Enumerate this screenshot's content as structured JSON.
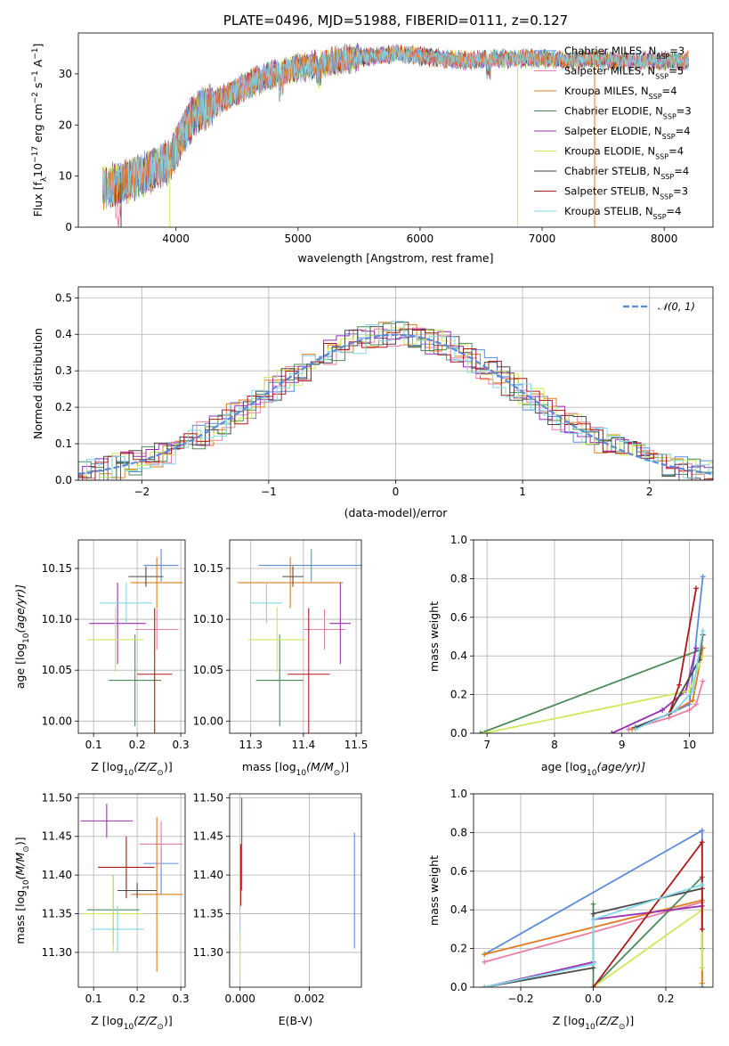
{
  "palette": {
    "chabrier_miles": "#5b8bd9",
    "salpeter_miles": "#e87fa5",
    "kroupa_miles": "#e07b1f",
    "chabrier_elodie": "#4c8a5a",
    "salpeter_elodie": "#9a2fb0",
    "kroupa_elodie": "#cde85a",
    "chabrier_stelib": "#4a4a4a",
    "salpeter_stelib": "#b01818",
    "kroupa_stelib": "#82d6e6",
    "normal": "#5b8bd9"
  },
  "chart_data": [
    {
      "id": "spectrum",
      "type": "line",
      "title": "PLATE=0496, MJD=51988, FIBERID=0111, z=0.127",
      "xlabel": "wavelength [Angstrom, rest frame]",
      "ylabel": "Flux [f",
      "ylabel_sub": "λ",
      "ylabel_rest": "10",
      "ylabel_exp": "−17",
      "ylabel_units": " erg cm",
      "ylabel_units_exp1": "−2",
      "ylabel_units_mid": " s",
      "ylabel_units_exp2": "−1",
      "ylabel_units_end": " A",
      "ylabel_units_exp3": "−1",
      "ylabel_close": "]",
      "xlim": [
        3200,
        8400
      ],
      "ylim": [
        0,
        38
      ],
      "xticks": [
        4000,
        5000,
        6000,
        7000,
        8000
      ],
      "yticks": [
        0,
        10,
        20,
        30
      ],
      "grid": false,
      "legend_position": "top-right",
      "continuum_x": [
        3400,
        3600,
        3800,
        3950,
        4050,
        4150,
        4300,
        4450,
        4600,
        4800,
        5000,
        5200,
        5400,
        5600,
        5800,
        6000,
        6200,
        6400,
        6600,
        6800,
        7000,
        7200,
        7400,
        7600,
        7800,
        8000,
        8200
      ],
      "continuum_y": [
        7.5,
        9,
        11,
        13,
        18,
        22,
        24,
        26,
        28,
        30,
        31,
        32,
        33,
        33.5,
        34,
        33.5,
        33,
        32.5,
        33,
        33,
        33,
        32.5,
        33,
        32.5,
        32.5,
        32.5,
        32.5
      ],
      "drop_x": [
        3550,
        3950,
        6800,
        7430
      ],
      "series": [
        {
          "name": "Chabrier MILES",
          "nssp": "3",
          "key": "chabrier_miles"
        },
        {
          "name": "Salpeter MILES",
          "nssp": "5",
          "key": "salpeter_miles"
        },
        {
          "name": "Kroupa MILES",
          "nssp": "4",
          "key": "kroupa_miles"
        },
        {
          "name": "Chabrier ELODIE",
          "nssp": "3",
          "key": "chabrier_elodie"
        },
        {
          "name": "Salpeter ELODIE",
          "nssp": "4",
          "key": "salpeter_elodie"
        },
        {
          "name": "Kroupa ELODIE",
          "nssp": "4",
          "key": "kroupa_elodie"
        },
        {
          "name": "Chabrier STELIB",
          "nssp": "4",
          "key": "chabrier_stelib"
        },
        {
          "name": "Salpeter STELIB",
          "nssp": "3",
          "key": "salpeter_stelib"
        },
        {
          "name": "Kroupa STELIB",
          "nssp": "4",
          "key": "kroupa_stelib"
        }
      ],
      "legend_nssp_label": "N",
      "legend_nssp_sub": "SSP"
    },
    {
      "id": "residuals",
      "type": "histogram",
      "xlabel": "(data-model)/error",
      "ylabel": "Normed distribution",
      "xlim": [
        -2.5,
        2.5
      ],
      "ylim": [
        0,
        0.53
      ],
      "xticks": [
        -2,
        -1,
        0,
        1,
        2
      ],
      "yticks": [
        0.0,
        0.1,
        0.2,
        0.3,
        0.4,
        0.5
      ],
      "grid": true,
      "legend_position": "top-right",
      "normal_label": "𝒩(0, 1)",
      "bin_width": 0.1
    },
    {
      "id": "age_vs_Z",
      "type": "errorbar",
      "xlabel": "Z [log",
      "xlabel_sub": "10",
      "xlabel_rest": "(Z/Z",
      "xlabel_sun": "⊙",
      "xlabel_close": ")]",
      "ylabel": "age  [log",
      "ylabel_sub": "10",
      "ylabel_rest": "(age/yr)]",
      "xlim": [
        0.065,
        0.31
      ],
      "ylim": [
        9.988,
        10.178
      ],
      "xticks": [
        0.1,
        0.2,
        0.3
      ],
      "yticks": [
        10.0,
        10.05,
        10.1,
        10.15
      ],
      "grid": true,
      "points": [
        {
          "key": "chabrier_miles",
          "x": 0.255,
          "y": 10.153,
          "xerr": 0.04,
          "yerr": 0.016
        },
        {
          "key": "salpeter_miles",
          "x": 0.245,
          "y": 10.09,
          "xerr": 0.05,
          "yerr": 0.02
        },
        {
          "key": "kroupa_miles",
          "x": 0.245,
          "y": 10.136,
          "xerr": 0.06,
          "yerr": 0.025
        },
        {
          "key": "chabrier_elodie",
          "x": 0.195,
          "y": 10.04,
          "xerr": 0.06,
          "yerr": 0.045
        },
        {
          "key": "salpeter_elodie",
          "x": 0.155,
          "y": 10.096,
          "xerr": 0.065,
          "yerr": 0.04
        },
        {
          "key": "kroupa_elodie",
          "x": 0.15,
          "y": 10.08,
          "xerr": 0.065,
          "yerr": 0.032
        },
        {
          "key": "chabrier_stelib",
          "x": 0.22,
          "y": 10.142,
          "xerr": 0.04,
          "yerr": 0.01
        },
        {
          "key": "salpeter_stelib",
          "x": 0.24,
          "y": 10.046,
          "xerr": 0.04,
          "yerr": 0.065
        },
        {
          "key": "kroupa_stelib",
          "x": 0.175,
          "y": 10.116,
          "xerr": 0.06,
          "yerr": 0.02
        }
      ]
    },
    {
      "id": "age_vs_mass",
      "type": "errorbar",
      "xlabel": "mass [log",
      "xlabel_sub": "10",
      "xlabel_rest": "(M/M",
      "xlabel_sun": "⊙",
      "xlabel_close": ")]",
      "xlim": [
        11.26,
        11.51
      ],
      "ylim": [
        9.988,
        10.178
      ],
      "xticks": [
        11.3,
        11.4,
        11.5
      ],
      "yticks": [
        10.0,
        10.05,
        10.1,
        10.15
      ],
      "grid": true,
      "points": [
        {
          "key": "chabrier_miles",
          "x": 11.415,
          "y": 10.153,
          "xerr": 0.1,
          "yerr": 0.016
        },
        {
          "key": "salpeter_miles",
          "x": 11.44,
          "y": 10.09,
          "xerr": 0.04,
          "yerr": 0.02
        },
        {
          "key": "kroupa_miles",
          "x": 11.375,
          "y": 10.136,
          "xerr": 0.1,
          "yerr": 0.025
        },
        {
          "key": "chabrier_elodie",
          "x": 11.355,
          "y": 10.04,
          "xerr": 0.045,
          "yerr": 0.045
        },
        {
          "key": "salpeter_elodie",
          "x": 11.47,
          "y": 10.096,
          "xerr": 0.02,
          "yerr": 0.04
        },
        {
          "key": "kroupa_elodie",
          "x": 11.35,
          "y": 10.08,
          "xerr": 0.055,
          "yerr": 0.032
        },
        {
          "key": "chabrier_stelib",
          "x": 11.38,
          "y": 10.142,
          "xerr": 0.02,
          "yerr": 0.01
        },
        {
          "key": "salpeter_stelib",
          "x": 11.41,
          "y": 10.046,
          "xerr": 0.04,
          "yerr": 0.065
        },
        {
          "key": "kroupa_stelib",
          "x": 11.33,
          "y": 10.116,
          "xerr": 0.03,
          "yerr": 0.02
        }
      ]
    },
    {
      "id": "weight_vs_age",
      "type": "line",
      "xlabel": "age  [log",
      "xlabel_sub": "10",
      "xlabel_rest": "(age/yr)]",
      "ylabel": "mass weight",
      "xlim": [
        6.8,
        10.35
      ],
      "ylim": [
        0,
        1.0
      ],
      "xticks": [
        7,
        8,
        9,
        10
      ],
      "yticks": [
        0.0,
        0.2,
        0.4,
        0.6,
        0.8,
        1.0
      ],
      "grid": true,
      "lines": [
        {
          "key": "chabrier_miles",
          "x": [
            9.1,
            9.7,
            10.0,
            10.2
          ],
          "y": [
            0.02,
            0.1,
            0.15,
            0.81
          ]
        },
        {
          "key": "salpeter_miles",
          "x": [
            9.1,
            9.7,
            10.0,
            10.1,
            10.2
          ],
          "y": [
            0.02,
            0.08,
            0.12,
            0.15,
            0.27
          ]
        },
        {
          "key": "kroupa_miles",
          "x": [
            9.15,
            9.7,
            10.05,
            10.2
          ],
          "y": [
            0.02,
            0.1,
            0.17,
            0.44
          ]
        },
        {
          "key": "chabrier_elodie",
          "x": [
            6.9,
            10.15
          ],
          "y": [
            0.0,
            0.43
          ]
        },
        {
          "key": "salpeter_elodie",
          "x": [
            8.85,
            9.6,
            9.95,
            10.1
          ],
          "y": [
            0.0,
            0.12,
            0.22,
            0.44
          ]
        },
        {
          "key": "kroupa_elodie",
          "x": [
            6.95,
            10.0,
            10.2
          ],
          "y": [
            0.0,
            0.22,
            0.4
          ]
        },
        {
          "key": "chabrier_stelib",
          "x": [
            9.2,
            9.7,
            10.15,
            10.2
          ],
          "y": [
            0.03,
            0.1,
            0.38,
            0.51
          ]
        },
        {
          "key": "salpeter_stelib",
          "x": [
            9.7,
            9.85,
            10.1
          ],
          "y": [
            0.1,
            0.25,
            0.75
          ]
        },
        {
          "key": "kroupa_stelib",
          "x": [
            9.2,
            9.8,
            10.05,
            10.2
          ],
          "y": [
            0.02,
            0.12,
            0.22,
            0.53
          ]
        }
      ]
    },
    {
      "id": "mass_vs_Z",
      "type": "errorbar",
      "xlabel": "Z [log",
      "xlabel_sub": "10",
      "xlabel_rest": "(Z/Z",
      "xlabel_sun": "⊙",
      "xlabel_close": ")]",
      "ylabel": "mass [log",
      "ylabel_sub": "10",
      "ylabel_rest": "(M/M",
      "ylabel_sun": "⊙",
      "ylabel_close": ")]",
      "xlim": [
        0.065,
        0.31
      ],
      "ylim": [
        11.255,
        11.505
      ],
      "xticks": [
        0.1,
        0.2,
        0.3
      ],
      "yticks": [
        11.3,
        11.35,
        11.4,
        11.45,
        11.5
      ],
      "grid": true,
      "points": [
        {
          "key": "chabrier_miles",
          "x": 0.255,
          "y": 11.415,
          "xerr": 0.04,
          "yerr": 0.04
        },
        {
          "key": "salpeter_miles",
          "x": 0.255,
          "y": 11.44,
          "xerr": 0.05,
          "yerr": 0.03
        },
        {
          "key": "kroupa_miles",
          "x": 0.245,
          "y": 11.375,
          "xerr": 0.06,
          "yerr": 0.1
        },
        {
          "key": "chabrier_elodie",
          "x": 0.145,
          "y": 11.355,
          "xerr": 0.06,
          "yerr": 0.045
        },
        {
          "key": "salpeter_elodie",
          "x": 0.13,
          "y": 11.47,
          "xerr": 0.06,
          "yerr": 0.022
        },
        {
          "key": "kroupa_elodie",
          "x": 0.145,
          "y": 11.35,
          "xerr": 0.07,
          "yerr": 0.05
        },
        {
          "key": "chabrier_stelib",
          "x": 0.2,
          "y": 11.38,
          "xerr": 0.045,
          "yerr": 0.01
        },
        {
          "key": "salpeter_stelib",
          "x": 0.175,
          "y": 11.41,
          "xerr": 0.065,
          "yerr": 0.04
        },
        {
          "key": "kroupa_stelib",
          "x": 0.155,
          "y": 11.33,
          "xerr": 0.06,
          "yerr": 0.03
        }
      ]
    },
    {
      "id": "mass_vs_ebv",
      "type": "errorbar",
      "xlabel": "E(B-V)",
      "xlim": [
        -0.0003,
        0.0035
      ],
      "ylim": [
        11.255,
        11.505
      ],
      "xticks": [
        0.0,
        0.002
      ],
      "yticks": [
        11.3,
        11.35,
        11.4,
        11.45,
        11.5
      ],
      "grid": true,
      "points": [
        {
          "key": "chabrier_miles",
          "x": 0.0033,
          "y": 11.38,
          "xerr": 0.0,
          "yerr": 0.075
        },
        {
          "key": "salpeter_elodie",
          "x": 5e-05,
          "y": 11.44,
          "xerr": 0.0,
          "yerr": 0.06
        },
        {
          "key": "salpeter_stelib",
          "x": 2e-05,
          "y": 11.4,
          "xerr": 0.0,
          "yerr": 0.04
        },
        {
          "key": "kroupa_stelib",
          "x": 0.0,
          "y": 11.33,
          "xerr": 0.0,
          "yerr": 0.02
        },
        {
          "key": "kroupa_elodie",
          "x": 0.0,
          "y": 11.3,
          "xerr": 0.0,
          "yerr": 0.03
        }
      ]
    },
    {
      "id": "weight_vs_Z",
      "type": "line",
      "xlabel": "Z [log",
      "xlabel_sub": "10",
      "xlabel_rest": "(Z/Z",
      "xlabel_sun": "⊙",
      "xlabel_close": ")]",
      "ylabel": "mass weight",
      "xlim": [
        -0.33,
        0.33
      ],
      "ylim": [
        0,
        1.0
      ],
      "xticks": [
        -0.2,
        0.0,
        0.2
      ],
      "yticks": [
        0.0,
        0.2,
        0.4,
        0.6,
        0.8,
        1.0
      ],
      "grid": true,
      "lines": [
        {
          "key": "chabrier_miles",
          "x": [
            -0.3,
            0.3,
            0.3
          ],
          "y": [
            0.17,
            0.81,
            0.0
          ]
        },
        {
          "key": "salpeter_miles",
          "x": [
            -0.3,
            0.3,
            0.3
          ],
          "y": [
            0.13,
            0.44,
            0.1
          ]
        },
        {
          "key": "kroupa_miles",
          "x": [
            -0.3,
            0.3,
            0.3
          ],
          "y": [
            0.17,
            0.45,
            0.02
          ]
        },
        {
          "key": "chabrier_elodie",
          "x": [
            0.0,
            0.0,
            0.3,
            0.3
          ],
          "y": [
            0.43,
            0.0,
            0.57,
            0.2
          ]
        },
        {
          "key": "salpeter_elodie",
          "x": [
            -0.3,
            0.0,
            0.0,
            0.3
          ],
          "y": [
            0.0,
            0.13,
            0.35,
            0.42
          ]
        },
        {
          "key": "kroupa_elodie",
          "x": [
            0.0,
            0.3,
            0.3
          ],
          "y": [
            0.0,
            0.4,
            0.1
          ]
        },
        {
          "key": "chabrier_stelib",
          "x": [
            -0.3,
            0.0,
            0.0,
            0.3
          ],
          "y": [
            0.0,
            0.1,
            0.38,
            0.51
          ]
        },
        {
          "key": "salpeter_stelib",
          "x": [
            0.0,
            0.3,
            0.3
          ],
          "y": [
            0.0,
            0.75,
            0.3
          ]
        },
        {
          "key": "kroupa_stelib",
          "x": [
            -0.3,
            0.0,
            0.0,
            0.3
          ],
          "y": [
            0.0,
            0.12,
            0.35,
            0.53
          ]
        }
      ]
    }
  ]
}
